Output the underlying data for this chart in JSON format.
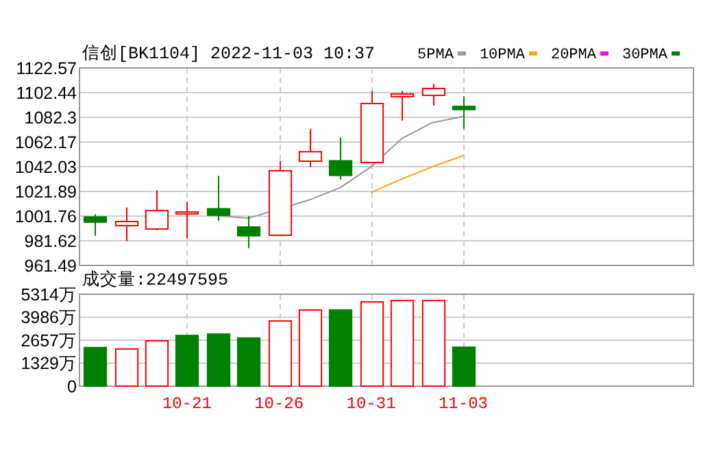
{
  "chart_data": [
    {
      "type": "candlestick",
      "title": "信创[BK1104] 2022-11-03 10:37",
      "ohlc": [
        [
          1001.0,
          1003.2,
          985.7,
          996.8
        ],
        [
          993.9,
          1008.8,
          981.2,
          997.3
        ],
        [
          991.2,
          1022.8,
          990.1,
          1006.2
        ],
        [
          1003.5,
          1013.3,
          983.4,
          1005.1
        ],
        [
          1007.7,
          1034.5,
          997.9,
          1002.4
        ],
        [
          992.8,
          1001.8,
          975.6,
          985.7
        ],
        [
          986.1,
          1046.8,
          986.1,
          1038.7
        ],
        [
          1046.5,
          1072.6,
          1041.6,
          1054.2
        ],
        [
          1046.8,
          1065.9,
          1031.5,
          1034.9
        ],
        [
          1045.4,
          1103.9,
          1045.4,
          1093.5
        ],
        [
          1099.1,
          1103.9,
          1079.6,
          1101.3
        ],
        [
          1100.2,
          1109.5,
          1091.9,
          1105.8
        ],
        [
          1091.2,
          1099.4,
          1072.9,
          1088.6
        ],
        null,
        null,
        null,
        null,
        null,
        null,
        null
      ],
      "colors": [
        "#008000",
        "#ff0000",
        "#ff0000",
        "#ff0000",
        "#008000",
        "#008000",
        "#ff0000",
        "#ff0000",
        "#008000",
        "#ff0000",
        "#ff0000",
        "#ff0000",
        "#008000",
        null,
        null,
        null,
        null,
        null,
        null,
        null
      ],
      "series": [
        {
          "name": "5PMA",
          "type": "line",
          "color": "#999999",
          "values": [
            null,
            null,
            null,
            null,
            1002,
            1000,
            null,
            1015,
            1025,
            1042,
            1065,
            1078,
            1083,
            null,
            null,
            null,
            null,
            null,
            null,
            null
          ]
        },
        {
          "name": "10PMA",
          "type": "line",
          "color": "#ffa500",
          "values": [
            null,
            null,
            null,
            null,
            null,
            null,
            null,
            null,
            null,
            1021,
            1032,
            1042,
            1051,
            null,
            null,
            null,
            null,
            null,
            null,
            null
          ]
        },
        {
          "name": "20PMA",
          "type": "line",
          "color": "#ff00ff",
          "values": [
            null,
            null,
            null,
            null,
            null,
            null,
            null,
            null,
            null,
            null,
            null,
            null,
            null,
            null,
            null,
            null,
            null,
            null,
            null,
            null
          ]
        },
        {
          "name": "30PMA",
          "type": "line",
          "color": "#008000",
          "values": [
            null,
            null,
            null,
            null,
            null,
            null,
            null,
            null,
            null,
            null,
            null,
            null,
            null,
            null,
            null,
            null,
            null,
            null,
            null,
            null
          ]
        }
      ],
      "ylim": [
        961.49,
        1122.57
      ],
      "yticks": [
        961.49,
        981.62,
        1001.76,
        1021.89,
        1042.03,
        1062.17,
        1082.3,
        1102.44,
        1122.57
      ],
      "grid": true,
      "legend": "top right",
      "tick_labels": "y"
    },
    {
      "type": "bar",
      "title": "成交量:22497595",
      "categories": [
        null,
        null,
        null,
        "10-21",
        null,
        null,
        "10-26",
        null,
        null,
        "10-31",
        null,
        null,
        "11-03",
        null,
        null,
        null,
        null,
        null,
        null,
        null
      ],
      "values": [
        2230,
        2150,
        2620,
        2930,
        3010,
        2780,
        3770,
        4400,
        4400,
        4870,
        4950,
        4950,
        2250,
        null,
        null,
        null,
        null,
        null,
        null,
        null
      ],
      "colors": [
        "#008000",
        "#ff0000",
        "#ff0000",
        "#008000",
        "#008000",
        "#008000",
        "#ff0000",
        "#ff0000",
        "#008000",
        "#ff0000",
        "#ff0000",
        "#ff0000",
        "#008000",
        null,
        null,
        null,
        null,
        null,
        null,
        null
      ],
      "ylim": [
        0,
        5314
      ],
      "yticks": [
        0,
        {
          "value": 1329,
          "label": "1329万"
        },
        {
          "value": 2657,
          "label": "2657万"
        },
        {
          "value": 3986,
          "label": "3986万"
        },
        {
          "value": 5314,
          "label": "5314万"
        }
      ],
      "grid": true
    }
  ]
}
